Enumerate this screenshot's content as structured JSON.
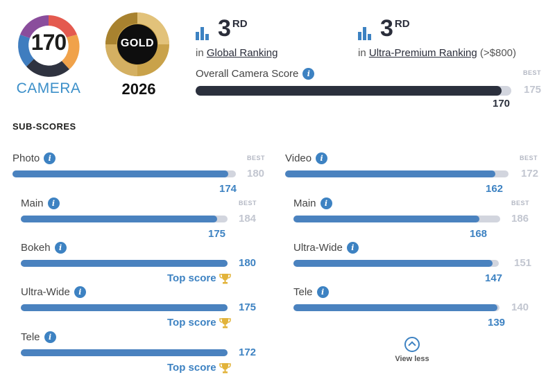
{
  "camera_badge": {
    "score": "170",
    "label": "CAMERA"
  },
  "gold_badge": {
    "text": "GOLD",
    "year": "2026"
  },
  "rankings": [
    {
      "rank": "3",
      "suffix": "RD",
      "prefix": "in",
      "link": "Global Ranking",
      "extra": ""
    },
    {
      "rank": "3",
      "suffix": "RD",
      "prefix": "in",
      "link": "Ultra-Premium Ranking",
      "extra": " (>$800)"
    }
  ],
  "overall": {
    "label": "Overall Camera Score",
    "best_label": "BEST",
    "best": "175",
    "score": "170",
    "fraction": 0.97
  },
  "subscores_title": "SUB-SCORES",
  "photo": {
    "header": {
      "label": "Photo",
      "best_label": "BEST",
      "best": "180",
      "score": "174",
      "fraction": 0.965
    },
    "items": [
      {
        "label": "Main",
        "best_label": "BEST",
        "best": "184",
        "score": "175",
        "fraction": 0.95,
        "top": ""
      },
      {
        "label": "Bokeh",
        "best_label": "",
        "best": "",
        "score": "180",
        "fraction": 1.0,
        "top": "Top score"
      },
      {
        "label": "Ultra-Wide",
        "best_label": "",
        "best": "",
        "score": "175",
        "fraction": 1.0,
        "top": "Top score"
      },
      {
        "label": "Tele",
        "best_label": "",
        "best": "",
        "score": "172",
        "fraction": 1.0,
        "top": "Top score"
      }
    ]
  },
  "video": {
    "header": {
      "label": "Video",
      "best_label": "BEST",
      "best": "172",
      "score": "162",
      "fraction": 0.94
    },
    "items": [
      {
        "label": "Main",
        "best_label": "BEST",
        "best": "186",
        "score": "168",
        "fraction": 0.9,
        "top": ""
      },
      {
        "label": "Ultra-Wide",
        "best_label": "",
        "best": "151",
        "score": "147",
        "fraction": 0.97,
        "top": ""
      },
      {
        "label": "Tele",
        "best_label": "",
        "best": "140",
        "score": "139",
        "fraction": 0.99,
        "top": ""
      }
    ]
  },
  "view_less": "View less",
  "colors": {
    "accent": "#3d82c2",
    "bar": "#4a82bf",
    "track": "#d2d5de",
    "dark": "#2b303d",
    "gold": "#c9a24a"
  },
  "icons": {
    "info": "info-icon",
    "rank": "bar-chart-icon",
    "trophy": "trophy-icon",
    "chevron": "chevron-up-icon"
  }
}
